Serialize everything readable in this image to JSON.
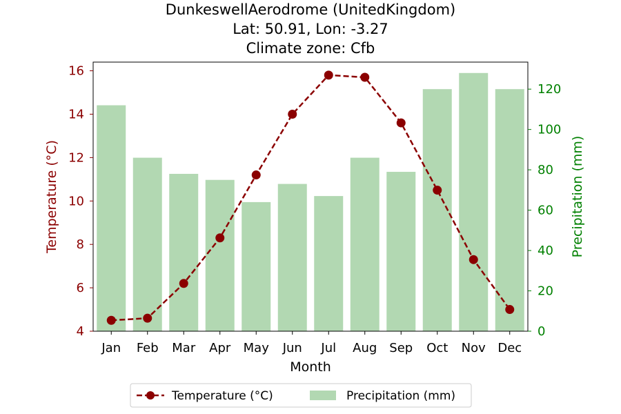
{
  "chart_data": {
    "type": "bar+line",
    "title_lines": [
      "DunkeswellAerodrome (UnitedKingdom)",
      "Lat: 50.91, Lon: -3.27",
      "Climate zone: Cfb"
    ],
    "xlabel": "Month",
    "ylabel_left": "Temperature (°C)",
    "ylabel_right": "Precipitation (mm)",
    "categories": [
      "Jan",
      "Feb",
      "Mar",
      "Apr",
      "May",
      "Jun",
      "Jul",
      "Aug",
      "Sep",
      "Oct",
      "Nov",
      "Dec"
    ],
    "series": [
      {
        "name": "Temperature (°C)",
        "type": "line",
        "axis": "left",
        "color": "#8b0000",
        "values": [
          4.5,
          4.6,
          6.2,
          8.3,
          11.2,
          14.0,
          15.8,
          15.7,
          13.6,
          10.5,
          7.3,
          5.0
        ]
      },
      {
        "name": "Precipitation (mm)",
        "type": "bar",
        "axis": "right",
        "color": "#b2d8b2",
        "values": [
          112,
          86,
          78,
          75,
          64,
          73,
          67,
          86,
          79,
          120,
          128,
          120
        ]
      }
    ],
    "ylim_left": [
      4,
      16.4
    ],
    "yticks_left": [
      4,
      6,
      8,
      10,
      12,
      14,
      16
    ],
    "ylim_right": [
      0,
      133.4
    ],
    "yticks_right": [
      0,
      20,
      40,
      60,
      80,
      100,
      120
    ],
    "left_axis_color": "#8b0000",
    "right_axis_color": "#008000",
    "grid": false,
    "legend_position": "bottom-center"
  }
}
